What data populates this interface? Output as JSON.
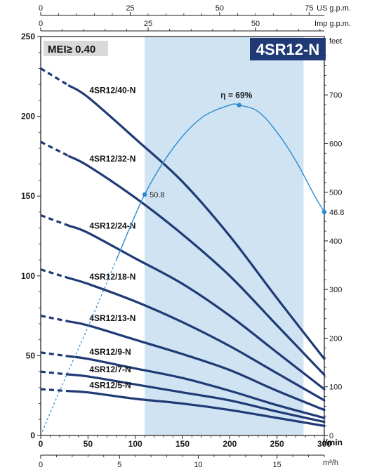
{
  "chart_data": {
    "type": "line",
    "title": "4SR12-N",
    "badge": "MEI≥ 0.40",
    "colors": {
      "curve": "#1f3a75",
      "efficiency": "#2b8ad0",
      "band": "#cfe3f3",
      "title_bg": "#1f3a75"
    },
    "x_primary": {
      "unit": "l/min",
      "range": [
        0,
        300
      ],
      "ticks": [
        0,
        50,
        100,
        150,
        200,
        250,
        300
      ]
    },
    "x_m3h": {
      "unit": "m³/h",
      "range": [
        0,
        18
      ],
      "ticks": [
        0,
        5,
        10,
        15
      ]
    },
    "x_usgpm": {
      "unit": "US g.p.m.",
      "range": [
        0,
        79.25
      ],
      "ticks": [
        0,
        25,
        50,
        75
      ]
    },
    "x_impgpm": {
      "unit": "Imp g.p.m.",
      "range": [
        0,
        66
      ],
      "ticks": [
        0,
        25,
        50
      ]
    },
    "y_left": {
      "range": [
        0,
        250
      ],
      "ticks": [
        0,
        50,
        100,
        150,
        200,
        250
      ]
    },
    "y_right": {
      "unit": "feet",
      "range": [
        0,
        820
      ],
      "ticks": [
        0,
        100,
        200,
        300,
        400,
        500,
        600,
        700
      ]
    },
    "recommended_range": [
      110,
      278
    ],
    "series": [
      {
        "name": "4SR12/40-N",
        "x": [
          0,
          50,
          100,
          150,
          200,
          250,
          300
        ],
        "y": [
          230,
          212,
          186,
          159,
          125,
          86,
          48
        ]
      },
      {
        "name": "4SR12/32-N",
        "x": [
          0,
          50,
          100,
          150,
          200,
          250,
          300
        ],
        "y": [
          184,
          169,
          149,
          126,
          100,
          69,
          38
        ]
      },
      {
        "name": "4SR12/24-N",
        "x": [
          0,
          50,
          100,
          150,
          200,
          250,
          300
        ],
        "y": [
          138,
          127,
          111,
          95,
          75,
          52,
          29
        ]
      },
      {
        "name": "4SR12/18-N",
        "x": [
          0,
          50,
          100,
          150,
          200,
          250,
          300
        ],
        "y": [
          104,
          95,
          84,
          71,
          56,
          39,
          22
        ]
      },
      {
        "name": "4SR12/13-N",
        "x": [
          0,
          50,
          100,
          150,
          200,
          250,
          300
        ],
        "y": [
          75,
          69,
          60,
          51,
          41,
          28,
          16
        ]
      },
      {
        "name": "4SR12/9-N",
        "x": [
          0,
          50,
          100,
          150,
          200,
          250,
          300
        ],
        "y": [
          52,
          48,
          42,
          36,
          28,
          19,
          11
        ]
      },
      {
        "name": "4SR12/7-N",
        "x": [
          0,
          50,
          100,
          150,
          200,
          250,
          300
        ],
        "y": [
          40,
          37,
          32,
          27,
          22,
          15,
          8.5
        ]
      },
      {
        "name": "4SR12/5-N",
        "x": [
          0,
          50,
          100,
          150,
          200,
          250,
          300
        ],
        "y": [
          29,
          27,
          23,
          20,
          16,
          11,
          6
        ]
      }
    ],
    "dashed_until_x": 30,
    "efficiency": {
      "label": "η = 69%",
      "x": [
        0,
        20,
        50,
        80,
        110,
        140,
        170,
        200,
        210,
        230,
        250,
        270,
        290,
        300
      ],
      "y": [
        0,
        28,
        68,
        110,
        151,
        180,
        199,
        207,
        207,
        203,
        190,
        172,
        150,
        140
      ],
      "markers": [
        {
          "x": 110,
          "y": 151,
          "label": "50.8"
        },
        {
          "x": 210,
          "y": 207,
          "label": ""
        },
        {
          "x": 300,
          "y": 140,
          "label": "46.8"
        }
      ]
    }
  }
}
